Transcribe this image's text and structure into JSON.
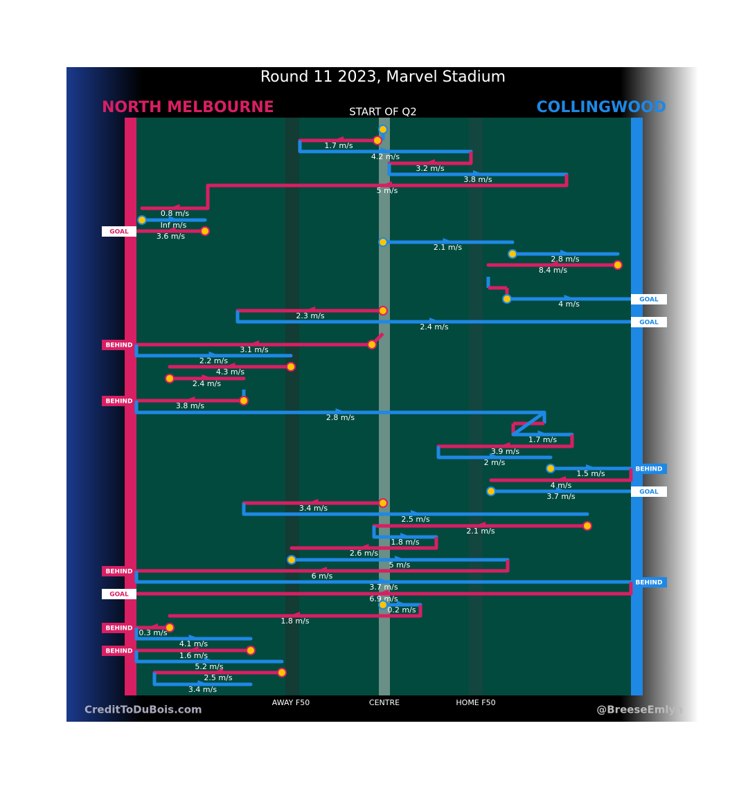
{
  "header": {
    "title": "Round 11 2023, Marvel Stadium",
    "home_team": "NORTH MELBOURNE",
    "away_team": "COLLINGWOOD",
    "subtitle": "START OF Q2"
  },
  "zones": [
    "AWAY F50",
    "CENTRE",
    "HOME F50"
  ],
  "footer": {
    "left": "CreditToDuBois.com",
    "right": "@BreeseEmlyn"
  },
  "moves": [
    {
      "label": "1.7 m/s"
    },
    {
      "label": "4.2 m/s"
    },
    {
      "label": "3.2 m/s"
    },
    {
      "label": "3.8 m/s"
    },
    {
      "label": "5 m/s"
    },
    {
      "label": "0.8 m/s"
    },
    {
      "label": "Inf m/s"
    },
    {
      "label": "3.6 m/s",
      "outcome": "GOAL"
    },
    {
      "label": "2.1 m/s"
    },
    {
      "label": "2.8 m/s"
    },
    {
      "label": "8.4 m/s"
    },
    {
      "label": "4 m/s",
      "outcome": "GOAL"
    },
    {
      "label": "2.3 m/s"
    },
    {
      "label": "2.4 m/s",
      "outcome": "GOAL"
    },
    {
      "label": "3.1 m/s",
      "outcome": "BEHIND"
    },
    {
      "label": "2.2 m/s"
    },
    {
      "label": "4.3 m/s"
    },
    {
      "label": "2.4 m/s"
    },
    {
      "label": "3.8 m/s",
      "outcome": "BEHIND"
    },
    {
      "label": "2.8 m/s"
    },
    {
      "label": "1.7 m/s"
    },
    {
      "label": "3.9 m/s"
    },
    {
      "label": "2 m/s"
    },
    {
      "label": "1.5 m/s",
      "outcome": "BEHIND"
    },
    {
      "label": "4 m/s"
    },
    {
      "label": "3.7 m/s",
      "outcome": "GOAL"
    },
    {
      "label": "3.4 m/s"
    },
    {
      "label": "2.5 m/s"
    },
    {
      "label": "2.1 m/s"
    },
    {
      "label": "1.8 m/s"
    },
    {
      "label": "2.6 m/s"
    },
    {
      "label": "5 m/s"
    },
    {
      "label": "6 m/s",
      "outcome": "BEHIND"
    },
    {
      "label": "3.7 m/s",
      "outcome": "BEHIND"
    },
    {
      "label": "6.9 m/s",
      "outcome": "GOAL"
    },
    {
      "label": "0.2 m/s"
    },
    {
      "label": "1.8 m/s"
    },
    {
      "label": "0.3 m/s",
      "outcome": "BEHIND"
    },
    {
      "label": "4.1 m/s"
    },
    {
      "label": "1.6 m/s",
      "outcome": "BEHIND"
    },
    {
      "label": "5.2 m/s"
    },
    {
      "label": "2.5 m/s"
    },
    {
      "label": "3.4 m/s"
    }
  ]
}
